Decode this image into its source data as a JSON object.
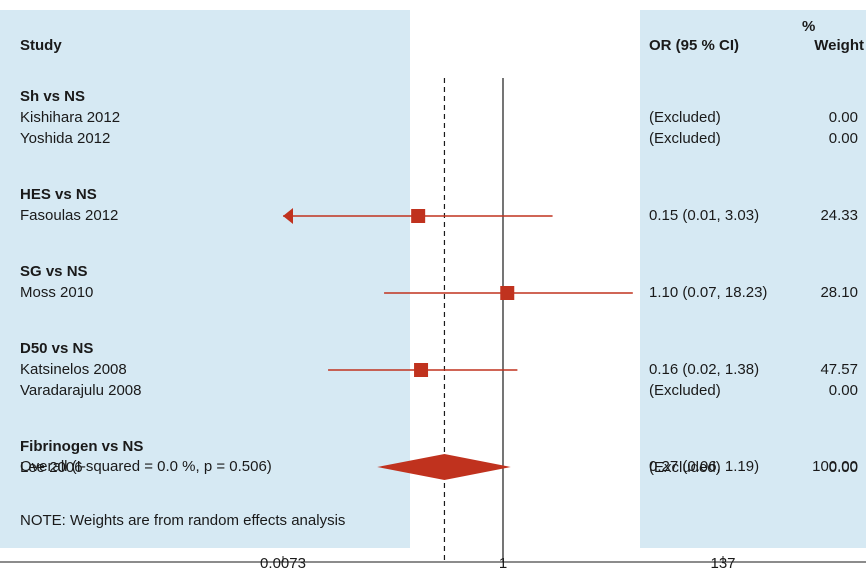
{
  "colors": {
    "panel_bg": "#d6e9f3",
    "marker": "#c0321e",
    "axis": "#1a1a1a"
  },
  "header": {
    "study_label": "Study",
    "or_label": "OR (95 % CI)",
    "weight_label_line1": "%",
    "weight_label_line2": "Weight"
  },
  "note": "NOTE: Weights are from random effects analysis",
  "chart_data": {
    "type": "forest",
    "x_scale": "log",
    "x_ticks": [
      0.0073,
      1,
      137
    ],
    "x_tick_labels": [
      "0.0073",
      "1",
      "137"
    ],
    "null_line": 1,
    "pooled_line": 0.27,
    "groups": [
      {
        "name": "Sh vs NS",
        "studies": [
          {
            "label": "Kishihara 2012",
            "or_text": "(Excluded)",
            "weight_text": "0.00",
            "excluded": true
          },
          {
            "label": "Yoshida 2012",
            "or_text": "(Excluded)",
            "weight_text": "0.00",
            "excluded": true
          }
        ]
      },
      {
        "name": "HES vs NS",
        "studies": [
          {
            "label": "Fasoulas 2012",
            "or": 0.15,
            "ci": [
              0.01,
              3.03
            ],
            "or_text": "0.15 (0.01, 3.03)",
            "weight": 24.33,
            "weight_text": "24.33",
            "arrow_left": true
          }
        ]
      },
      {
        "name": "SG vs NS",
        "studies": [
          {
            "label": "Moss 2010",
            "or": 1.1,
            "ci": [
              0.07,
              18.23
            ],
            "or_text": "1.10 (0.07, 18.23)",
            "weight": 28.1,
            "weight_text": "28.10"
          }
        ]
      },
      {
        "name": "D50 vs NS",
        "studies": [
          {
            "label": "Katsinelos 2008",
            "or": 0.16,
            "ci": [
              0.02,
              1.38
            ],
            "or_text": "0.16 (0.02, 1.38)",
            "weight": 47.57,
            "weight_text": "47.57"
          },
          {
            "label": "Varadarajulu 2008",
            "or_text": "(Excluded)",
            "weight_text": "0.00",
            "excluded": true
          }
        ]
      },
      {
        "name": "Fibrinogen vs NS",
        "studies": [
          {
            "label": "Lee 2006",
            "or_text": "(Excluded)",
            "weight_text": "0.00",
            "excluded": true
          }
        ]
      }
    ],
    "overall": {
      "label": "Overall (I-squared = 0.0 %, p = 0.506)",
      "or": 0.27,
      "ci": [
        0.06,
        1.19
      ],
      "or_text": "0.27 (0.06, 1.19)",
      "weight_text": "100.00"
    }
  }
}
